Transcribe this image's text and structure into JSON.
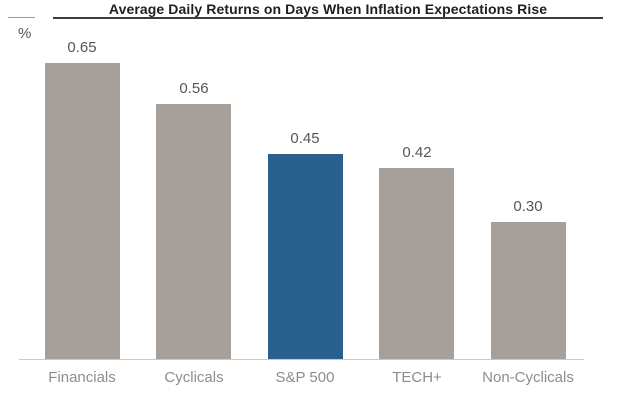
{
  "title": "Average Daily Returns on Days When Inflation Expectations Rise",
  "y_axis_unit": "%",
  "colors": {
    "background": "#ffffff",
    "bar_default": "#a7a09a",
    "bar_highlight": "#2a608e",
    "title_text": "#1f1f1f",
    "title_rule": "#3c3c3c",
    "axis_stub": "#9a9a9a",
    "value_label": "#565656",
    "category_label": "#8d8d8d",
    "baseline": "#c9c9c9"
  },
  "chart_data": {
    "type": "bar",
    "title": "Average Daily Returns on Days When Inflation Expectations Rise",
    "categories": [
      "Financials",
      "Cyclicals",
      "S&P 500",
      "TECH+",
      "Non-Cyclicals"
    ],
    "values": [
      0.65,
      0.56,
      0.45,
      0.42,
      0.3
    ],
    "value_labels": [
      "0.65",
      "0.56",
      "0.45",
      "0.42",
      "0.30"
    ],
    "highlight_index": 2,
    "highlight_category": "S&P 500",
    "xlabel": "",
    "ylabel": "%",
    "ylim": [
      0,
      0.75
    ],
    "grid": false,
    "legend": "none",
    "value_label_position": "above-bar",
    "bar_orientation": "vertical"
  }
}
